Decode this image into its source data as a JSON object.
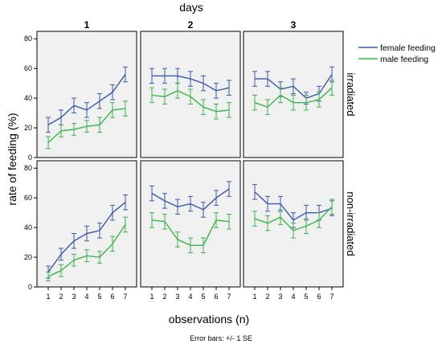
{
  "figure": {
    "column_title": "days",
    "x_axis_label": "observations (n)",
    "y_axis_label": "rate of feeding (%)",
    "footnote": "Error bars: +/- 1 SE"
  },
  "chart_data": {
    "type": "line",
    "layout": "small-multiples 2 rows x 3 columns",
    "columns": [
      "1",
      "2",
      "3"
    ],
    "rows": [
      "irradiated",
      "non-irradiated"
    ],
    "x": [
      1,
      2,
      3,
      4,
      5,
      6,
      7
    ],
    "x_ticks": [
      "1",
      "2",
      "3",
      "4",
      "5",
      "6",
      "7"
    ],
    "y_ticks": [
      "0",
      "20",
      "40",
      "60",
      "80"
    ],
    "ylim": [
      0,
      85
    ],
    "grid": false,
    "legend_position": "top-right",
    "series_names": [
      "female feeding",
      "male feeding"
    ],
    "series_colors": [
      "#3a5aa8",
      "#3ab54a"
    ],
    "error_bars": "+/- 1 SE",
    "panels": [
      {
        "row": "irradiated",
        "column": "1",
        "series": [
          {
            "name": "female feeding",
            "values": [
              22,
              27,
              35,
              32,
              38,
              44,
              56
            ],
            "se": [
              5,
              5,
              5,
              5,
              5,
              5,
              5
            ]
          },
          {
            "name": "male feeding",
            "values": [
              10,
              18,
              19,
              21,
              22,
              32,
              33
            ],
            "se": [
              4,
              4,
              4,
              4,
              5,
              5,
              5
            ]
          }
        ]
      },
      {
        "row": "irradiated",
        "column": "2",
        "series": [
          {
            "name": "female feeding",
            "values": [
              55,
              55,
              55,
              53,
              50,
              45,
              47
            ],
            "se": [
              5,
              5,
              5,
              5,
              5,
              5,
              5
            ]
          },
          {
            "name": "male feeding",
            "values": [
              42,
              41,
              45,
              41,
              34,
              31,
              32
            ],
            "se": [
              5,
              5,
              5,
              5,
              5,
              5,
              5
            ]
          }
        ]
      },
      {
        "row": "irradiated",
        "column": "3",
        "series": [
          {
            "name": "female feeding",
            "values": [
              53,
              53,
              46,
              48,
              40,
              43,
              56
            ],
            "se": [
              5,
              5,
              5,
              5,
              4,
              5,
              5
            ]
          },
          {
            "name": "male feeding",
            "values": [
              37,
              34,
              42,
              37,
              37,
              39,
              47
            ],
            "se": [
              5,
              5,
              5,
              5,
              5,
              5,
              5
            ]
          }
        ]
      },
      {
        "row": "non-irradiated",
        "column": "1",
        "series": [
          {
            "name": "female feeding",
            "values": [
              10,
              22,
              31,
              36,
              38,
              50,
              57
            ],
            "se": [
              4,
              4,
              5,
              5,
              5,
              5,
              5
            ]
          },
          {
            "name": "male feeding",
            "values": [
              7,
              11,
              18,
              21,
              20,
              29,
              42
            ],
            "se": [
              3,
              4,
              4,
              4,
              4,
              5,
              5
            ]
          }
        ]
      },
      {
        "row": "non-irradiated",
        "column": "2",
        "series": [
          {
            "name": "female feeding",
            "values": [
              63,
              58,
              54,
              56,
              52,
              60,
              66
            ],
            "se": [
              5,
              5,
              5,
              5,
              5,
              5,
              5
            ]
          },
          {
            "name": "male feeding",
            "values": [
              45,
              44,
              32,
              28,
              28,
              45,
              44
            ],
            "se": [
              5,
              5,
              5,
              5,
              5,
              5,
              5
            ]
          }
        ]
      },
      {
        "row": "non-irradiated",
        "column": "3",
        "series": [
          {
            "name": "female feeding",
            "values": [
              64,
              56,
              56,
              45,
              50,
              50,
              53
            ],
            "se": [
              5,
              5,
              5,
              5,
              5,
              5,
              5
            ]
          },
          {
            "name": "male feeding",
            "values": [
              46,
              43,
              47,
              38,
              41,
              45,
              54
            ],
            "se": [
              5,
              5,
              5,
              5,
              5,
              5,
              5
            ]
          }
        ]
      }
    ]
  }
}
